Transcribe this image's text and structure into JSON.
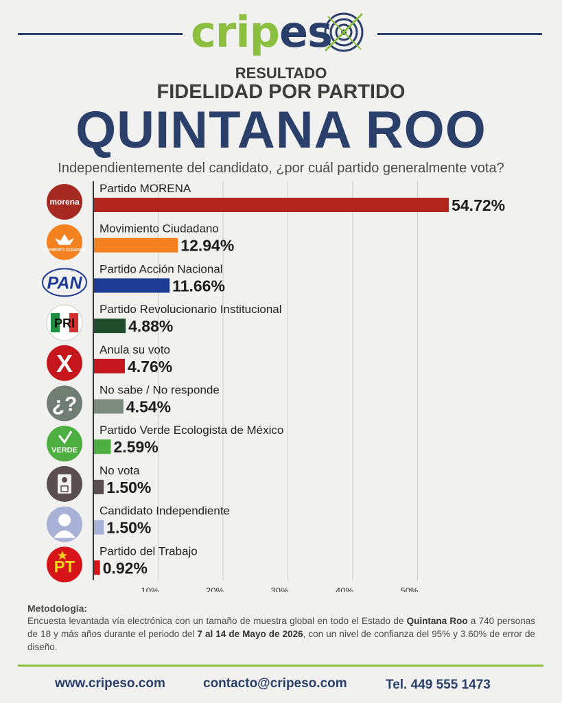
{
  "header": {
    "brand_part1": "crip",
    "brand_part2": "es",
    "subtitle1": "RESULTADO",
    "subtitle2": "FIDELIDAD POR PARTIDO",
    "title": "QUINTANA ROO",
    "question": "Independientemente del candidato, ¿por cuál partido generalmente vota?"
  },
  "chart_data": {
    "type": "bar",
    "orientation": "horizontal",
    "categories": [
      "Partido MORENA",
      "Movimiento Ciudadano",
      "Partido Acción Nacional",
      "Partido Revolucionario Institucional",
      "Anula su voto",
      "No sabe / No responde",
      "Partido Verde Ecologista de México",
      "No vota",
      "Candidato Independiente",
      "Partido del Trabajo"
    ],
    "values": [
      54.72,
      12.94,
      11.66,
      4.88,
      4.76,
      4.54,
      2.59,
      1.5,
      1.5,
      0.92
    ],
    "value_labels": [
      "54.72%",
      "12.94%",
      "11.66%",
      "4.88%",
      "4.76%",
      "4.54%",
      "2.59%",
      "1.50%",
      "1.50%",
      "0.92%"
    ],
    "colors": [
      "#b3261e",
      "#f58220",
      "#1f3a93",
      "#1f4d2b",
      "#c4161c",
      "#7c8a80",
      "#4caf3f",
      "#5a4e4e",
      "#a8b1d6",
      "#d7141a"
    ],
    "icons": [
      "morena-logo",
      "movimiento-ciudadano-logo",
      "pan-logo",
      "pri-logo",
      "null-vote-x-icon",
      "question-mark-icon",
      "verde-logo",
      "ballot-icon",
      "person-silhouette-icon",
      "pt-logo"
    ],
    "icon_texts": [
      "morena",
      "MOVIMIENTO CIUDADANO",
      "PAN",
      "PRI",
      "X",
      "¿?",
      "VERDE",
      "",
      "",
      "PT"
    ],
    "xlim": [
      0,
      60
    ],
    "xticks": [
      10,
      20,
      30,
      40,
      50
    ],
    "xtick_labels": [
      "10%",
      "20%",
      "30%",
      "40%",
      "50%"
    ],
    "grid": true,
    "xlabel": "",
    "ylabel": ""
  },
  "methodology": {
    "title": "Metodología:",
    "text_1": "Encuesta levantada vía electrónica con un tamaño de muestra global en todo el Estado de ",
    "state": "Quintana Roo",
    "text_2": " a 740 personas de 18 y más años durante el periodo del ",
    "period": "7 al 14 de Mayo de 2026",
    "text_3": ", con un nivel de confianza del 95% y 3.60% de error de diseño."
  },
  "footer": {
    "website": "www.cripeso.com",
    "email": "contacto@cripeso.com",
    "phone": "Tel. 449 555 1473"
  },
  "colors": {
    "navy": "#2b3f6b",
    "green": "#8cbf3f"
  }
}
